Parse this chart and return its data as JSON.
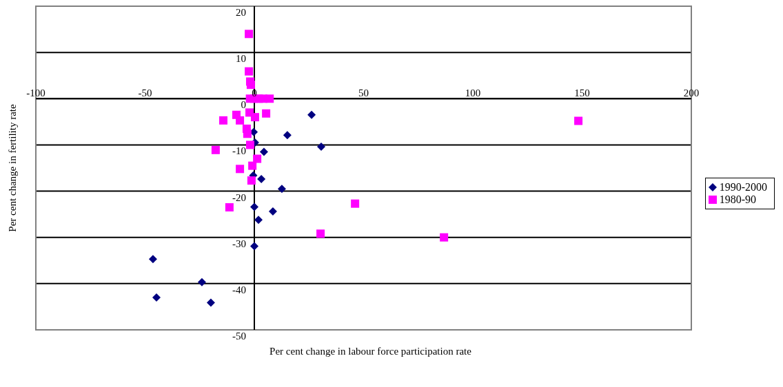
{
  "chart_data": {
    "type": "scatter",
    "xlabel": "Per cent change in labour force participation rate",
    "ylabel": "Per cent change in fertility rate",
    "xlim": [
      -100,
      200
    ],
    "xticks": [
      -100,
      -50,
      0,
      50,
      100,
      150,
      200
    ],
    "ylim": [
      -50,
      20
    ],
    "yticks": [
      -50,
      -40,
      -30,
      -20,
      -10,
      0,
      10,
      20
    ],
    "grid": "y",
    "legend": "right",
    "series": [
      {
        "name": "1990-2000",
        "color": "#000080",
        "marker": "diamond",
        "x": [
          26.2,
          15.1,
          30.6,
          4.4,
          0.3,
          -0.3,
          -0.5,
          3.2,
          12.6,
          0,
          8.5,
          1.9,
          0,
          -46.4,
          -24,
          -44.8,
          -19.9
        ],
        "values": [
          -3.5,
          -7.9,
          -10.4,
          -11.5,
          -9.5,
          -7.2,
          -16.6,
          -17.4,
          -19.5,
          -23.4,
          -24.4,
          -26.2,
          -31.9,
          -34.7,
          -39.7,
          -43,
          -44.1
        ]
      },
      {
        "name": "1980-90",
        "color": "#ff00ff",
        "marker": "square",
        "x": [
          -2.5,
          -2.5,
          -1.9,
          -1.6,
          -2,
          0,
          2,
          4,
          7,
          5.4,
          -14.2,
          -8.2,
          -6.6,
          -2.2,
          0.3,
          -3.5,
          -3.2,
          -1.9,
          -17.7,
          1.3,
          -0.9,
          -6.6,
          -1.3,
          -11.4,
          30.3,
          46.1,
          86.8,
          148.3
        ],
        "values": [
          14,
          5.9,
          3.7,
          3,
          0,
          0,
          0,
          0,
          0,
          -3.2,
          -4.7,
          -3.5,
          -4.7,
          -3,
          -4,
          -6.5,
          -7.6,
          -10,
          -11.1,
          -13,
          -14.5,
          -15.2,
          -17.7,
          -23.5,
          -29.2,
          -22.7,
          -30,
          -4.8
        ]
      }
    ]
  }
}
